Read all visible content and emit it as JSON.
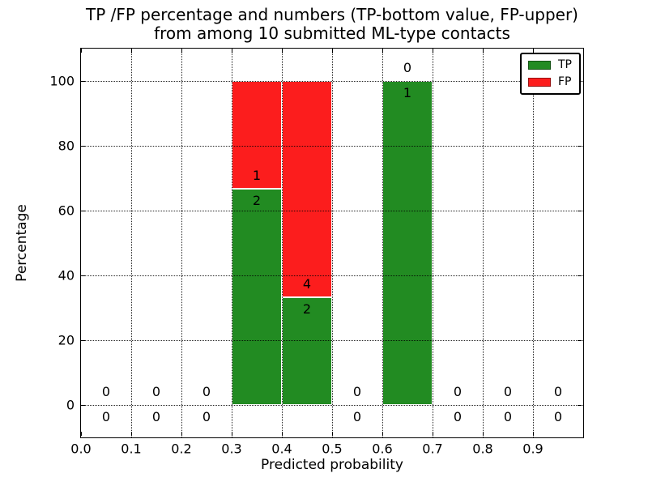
{
  "figure": {
    "title_line1": "TP /FP percentage and numbers (TP-bottom value, FP-upper)",
    "title_line2": "from among 10 submitted ML-type contacts"
  },
  "chart_data": {
    "type": "bar",
    "stacked": true,
    "normalized": "each non-empty bin stacks to 100%",
    "title": "TP /FP percentage and numbers (TP-bottom value, FP-upper) from among 10 submitted ML-type contacts",
    "xlabel": "Predicted probability",
    "ylabel": "Percentage",
    "xlim": [
      0.0,
      1.0
    ],
    "ylim": [
      -10,
      110
    ],
    "grid": true,
    "total_contacts": 10,
    "xticks": [
      0.0,
      0.1,
      0.2,
      0.3,
      0.4,
      0.5,
      0.6,
      0.7,
      0.8,
      0.9
    ],
    "xtick_labels": [
      "0.0",
      "0.1",
      "0.2",
      "0.3",
      "0.4",
      "0.5",
      "0.6",
      "0.7",
      "0.8",
      "0.9"
    ],
    "yticks": [
      0,
      20,
      40,
      60,
      80,
      100
    ],
    "ytick_labels": [
      "0",
      "20",
      "40",
      "60",
      "80",
      "100"
    ],
    "legend": {
      "position": "upper right",
      "entries": [
        {
          "id": "tp",
          "label": "TP",
          "color": "#228b22"
        },
        {
          "id": "fp",
          "label": "FP",
          "color": "#fc1d1d"
        }
      ]
    },
    "colors": {
      "tp": "#228b22",
      "fp": "#fc1d1d"
    },
    "bins": [
      {
        "x_range": [
          0.0,
          0.1
        ],
        "tp": 0,
        "fp": 0,
        "tp_pct": 0,
        "fp_pct": 0
      },
      {
        "x_range": [
          0.1,
          0.2
        ],
        "tp": 0,
        "fp": 0,
        "tp_pct": 0,
        "fp_pct": 0
      },
      {
        "x_range": [
          0.2,
          0.3
        ],
        "tp": 0,
        "fp": 0,
        "tp_pct": 0,
        "fp_pct": 0
      },
      {
        "x_range": [
          0.3,
          0.4
        ],
        "tp": 2,
        "fp": 1,
        "tp_pct": 66.7,
        "fp_pct": 33.3
      },
      {
        "x_range": [
          0.4,
          0.5
        ],
        "tp": 2,
        "fp": 4,
        "tp_pct": 33.3,
        "fp_pct": 66.7
      },
      {
        "x_range": [
          0.5,
          0.6
        ],
        "tp": 0,
        "fp": 0,
        "tp_pct": 0,
        "fp_pct": 0
      },
      {
        "x_range": [
          0.6,
          0.7
        ],
        "tp": 1,
        "fp": 0,
        "tp_pct": 100,
        "fp_pct": 0
      },
      {
        "x_range": [
          0.7,
          0.8
        ],
        "tp": 0,
        "fp": 0,
        "tp_pct": 0,
        "fp_pct": 0
      },
      {
        "x_range": [
          0.8,
          0.9
        ],
        "tp": 0,
        "fp": 0,
        "tp_pct": 0,
        "fp_pct": 0
      },
      {
        "x_range": [
          0.9,
          1.0
        ],
        "tp": 0,
        "fp": 0,
        "tp_pct": 0,
        "fp_pct": 0
      }
    ]
  }
}
